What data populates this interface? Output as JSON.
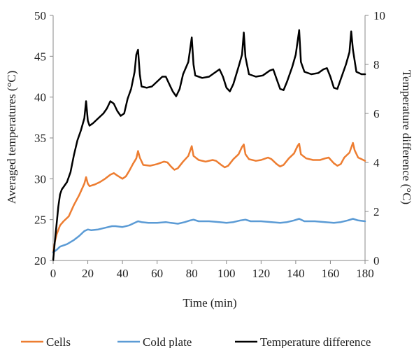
{
  "chart_data": {
    "type": "line",
    "xlabel": "Time (min)",
    "ylabel_left": "Averaged temperatures (°C)",
    "ylabel_right": "Temperature difference (°C)",
    "xlim": [
      0,
      180
    ],
    "ylim_left": [
      20,
      50
    ],
    "ylim_right": [
      0,
      10
    ],
    "x_ticks": [
      0,
      20,
      40,
      60,
      80,
      100,
      120,
      140,
      160,
      180
    ],
    "y_ticks_left": [
      20,
      25,
      30,
      35,
      40,
      45,
      50
    ],
    "y_ticks_right": [
      0,
      2,
      4,
      6,
      8,
      10
    ],
    "grid": false,
    "legend_position": "bottom",
    "series": [
      {
        "name": "Cells",
        "axis": "left",
        "color": "#ED7D31",
        "points": [
          [
            0,
            21
          ],
          [
            1,
            22.3
          ],
          [
            2,
            23.2
          ],
          [
            4,
            24.3
          ],
          [
            6,
            24.8
          ],
          [
            9,
            25.4
          ],
          [
            12,
            26.8
          ],
          [
            15,
            28
          ],
          [
            18,
            29.4
          ],
          [
            19,
            30.2
          ],
          [
            20,
            29.4
          ],
          [
            21,
            29.1
          ],
          [
            24,
            29.3
          ],
          [
            27,
            29.6
          ],
          [
            30,
            30
          ],
          [
            33,
            30.5
          ],
          [
            35,
            30.7
          ],
          [
            37,
            30.4
          ],
          [
            40,
            30
          ],
          [
            42,
            30.3
          ],
          [
            44,
            31
          ],
          [
            46,
            31.8
          ],
          [
            48,
            32.5
          ],
          [
            49,
            33.4
          ],
          [
            50,
            32.6
          ],
          [
            52,
            31.7
          ],
          [
            56,
            31.6
          ],
          [
            60,
            31.8
          ],
          [
            64,
            32.1
          ],
          [
            66,
            32
          ],
          [
            68,
            31.5
          ],
          [
            70,
            31.1
          ],
          [
            72,
            31.3
          ],
          [
            75,
            32.1
          ],
          [
            78,
            32.8
          ],
          [
            80,
            34
          ],
          [
            81,
            32.8
          ],
          [
            84,
            32.3
          ],
          [
            88,
            32.1
          ],
          [
            92,
            32.3
          ],
          [
            94,
            32.2
          ],
          [
            97,
            31.7
          ],
          [
            99,
            31.4
          ],
          [
            101,
            31.6
          ],
          [
            104,
            32.4
          ],
          [
            107,
            33
          ],
          [
            109,
            33.9
          ],
          [
            110,
            34.2
          ],
          [
            111,
            33
          ],
          [
            113,
            32.4
          ],
          [
            117,
            32.2
          ],
          [
            120,
            32.3
          ],
          [
            124,
            32.6
          ],
          [
            126,
            32.4
          ],
          [
            129,
            31.8
          ],
          [
            131,
            31.5
          ],
          [
            133,
            31.7
          ],
          [
            136,
            32.5
          ],
          [
            139,
            33.1
          ],
          [
            141,
            34
          ],
          [
            142,
            34.3
          ],
          [
            143,
            33
          ],
          [
            146,
            32.5
          ],
          [
            150,
            32.3
          ],
          [
            154,
            32.3
          ],
          [
            157,
            32.5
          ],
          [
            159,
            32.6
          ],
          [
            162,
            31.9
          ],
          [
            164,
            31.6
          ],
          [
            166,
            31.8
          ],
          [
            168,
            32.6
          ],
          [
            171,
            33.2
          ],
          [
            173,
            34.4
          ],
          [
            174,
            33.5
          ],
          [
            176,
            32.6
          ],
          [
            178,
            32.4
          ],
          [
            180,
            32.2
          ]
        ]
      },
      {
        "name": "Cold plate",
        "axis": "left",
        "color": "#5B9BD5",
        "points": [
          [
            0,
            21
          ],
          [
            2,
            21.3
          ],
          [
            4,
            21.7
          ],
          [
            8,
            22
          ],
          [
            12,
            22.5
          ],
          [
            15,
            23
          ],
          [
            18,
            23.6
          ],
          [
            20,
            23.8
          ],
          [
            22,
            23.7
          ],
          [
            26,
            23.8
          ],
          [
            30,
            24
          ],
          [
            34,
            24.2
          ],
          [
            36,
            24.2
          ],
          [
            40,
            24.1
          ],
          [
            44,
            24.3
          ],
          [
            47,
            24.6
          ],
          [
            49,
            24.8
          ],
          [
            51,
            24.7
          ],
          [
            55,
            24.6
          ],
          [
            60,
            24.6
          ],
          [
            65,
            24.7
          ],
          [
            68,
            24.6
          ],
          [
            72,
            24.5
          ],
          [
            76,
            24.7
          ],
          [
            79,
            24.9
          ],
          [
            81,
            25
          ],
          [
            84,
            24.8
          ],
          [
            90,
            24.8
          ],
          [
            96,
            24.7
          ],
          [
            100,
            24.6
          ],
          [
            104,
            24.7
          ],
          [
            108,
            24.9
          ],
          [
            111,
            25
          ],
          [
            114,
            24.8
          ],
          [
            120,
            24.8
          ],
          [
            126,
            24.7
          ],
          [
            131,
            24.6
          ],
          [
            135,
            24.7
          ],
          [
            139,
            24.9
          ],
          [
            142,
            25.1
          ],
          [
            145,
            24.8
          ],
          [
            151,
            24.8
          ],
          [
            157,
            24.7
          ],
          [
            162,
            24.6
          ],
          [
            166,
            24.7
          ],
          [
            170,
            24.9
          ],
          [
            173,
            25.1
          ],
          [
            176,
            24.9
          ],
          [
            180,
            24.8
          ]
        ]
      },
      {
        "name": "Temperature difference",
        "axis": "right",
        "color": "#000000",
        "points": [
          [
            0,
            0
          ],
          [
            1,
            0.8
          ],
          [
            2,
            1.5
          ],
          [
            3,
            2.2
          ],
          [
            4,
            2.7
          ],
          [
            5,
            2.9
          ],
          [
            6,
            3
          ],
          [
            8,
            3.2
          ],
          [
            10,
            3.6
          ],
          [
            12,
            4.3
          ],
          [
            14,
            4.9
          ],
          [
            16,
            5.3
          ],
          [
            18,
            5.8
          ],
          [
            19,
            6.5
          ],
          [
            20,
            5.7
          ],
          [
            21,
            5.5
          ],
          [
            23,
            5.6
          ],
          [
            26,
            5.8
          ],
          [
            29,
            6
          ],
          [
            31,
            6.2
          ],
          [
            33,
            6.5
          ],
          [
            35,
            6.4
          ],
          [
            37,
            6.1
          ],
          [
            39,
            5.9
          ],
          [
            41,
            6
          ],
          [
            43,
            6.6
          ],
          [
            45,
            7
          ],
          [
            47,
            7.7
          ],
          [
            48,
            8.4
          ],
          [
            49,
            8.6
          ],
          [
            50,
            7.6
          ],
          [
            51,
            7.1
          ],
          [
            54,
            7.05
          ],
          [
            57,
            7.1
          ],
          [
            60,
            7.3
          ],
          [
            63,
            7.5
          ],
          [
            65,
            7.5
          ],
          [
            67,
            7.2
          ],
          [
            69,
            6.9
          ],
          [
            71,
            6.7
          ],
          [
            73,
            7
          ],
          [
            75,
            7.6
          ],
          [
            78,
            8.1
          ],
          [
            80,
            9.1
          ],
          [
            81,
            8
          ],
          [
            82,
            7.55
          ],
          [
            86,
            7.45
          ],
          [
            90,
            7.5
          ],
          [
            94,
            7.7
          ],
          [
            96,
            7.8
          ],
          [
            98,
            7.5
          ],
          [
            100,
            7.05
          ],
          [
            102,
            6.9
          ],
          [
            104,
            7.2
          ],
          [
            107,
            7.9
          ],
          [
            109,
            8.4
          ],
          [
            110,
            9.3
          ],
          [
            111,
            8.3
          ],
          [
            113,
            7.6
          ],
          [
            117,
            7.5
          ],
          [
            121,
            7.55
          ],
          [
            125,
            7.75
          ],
          [
            127,
            7.8
          ],
          [
            129,
            7.4
          ],
          [
            131,
            7
          ],
          [
            133,
            6.95
          ],
          [
            135,
            7.3
          ],
          [
            138,
            7.9
          ],
          [
            140,
            8.4
          ],
          [
            142,
            9.4
          ],
          [
            143,
            8.1
          ],
          [
            145,
            7.7
          ],
          [
            149,
            7.6
          ],
          [
            153,
            7.65
          ],
          [
            156,
            7.8
          ],
          [
            158,
            7.85
          ],
          [
            160,
            7.5
          ],
          [
            162,
            7.05
          ],
          [
            164,
            7
          ],
          [
            166,
            7.4
          ],
          [
            169,
            8
          ],
          [
            171,
            8.5
          ],
          [
            172,
            9.35
          ],
          [
            173,
            8.6
          ],
          [
            175,
            7.7
          ],
          [
            178,
            7.6
          ],
          [
            180,
            7.6
          ]
        ]
      }
    ]
  }
}
